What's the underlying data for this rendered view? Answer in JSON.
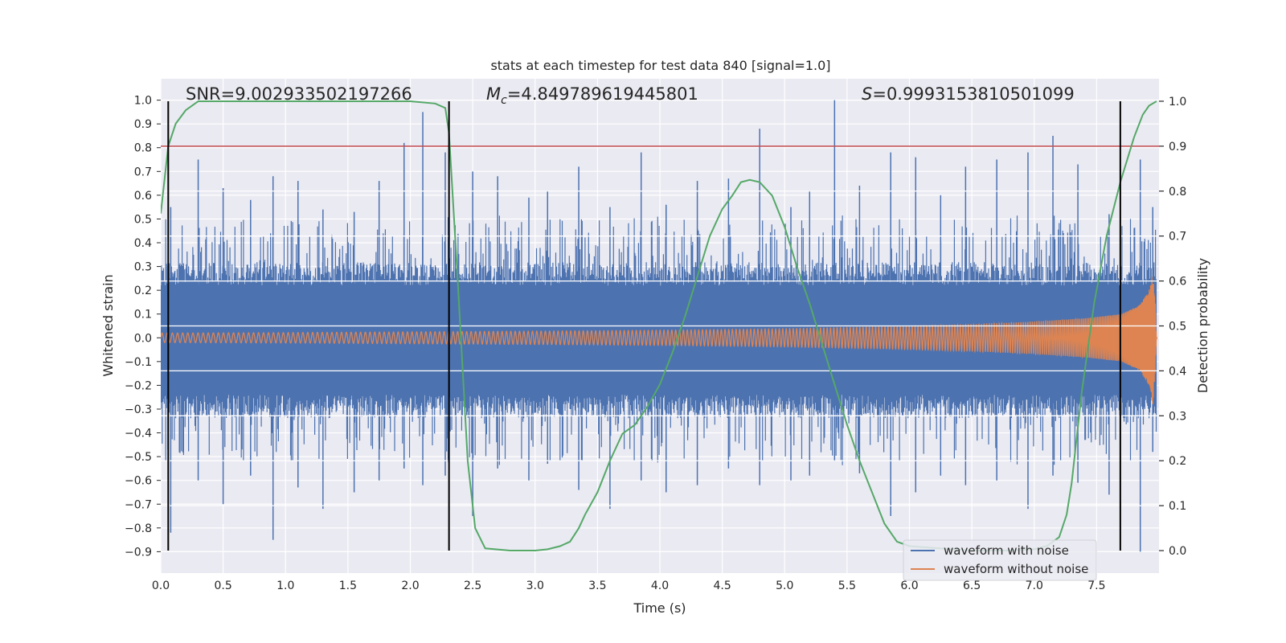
{
  "chart_data": {
    "type": "line",
    "title": "stats at each timestep for test data 840 [signal=1.0]",
    "xlabel": "Time (s)",
    "ylabel": "Whitened strain",
    "y2label": "Detection probability",
    "xlim": [
      0.0,
      8.0
    ],
    "ylim": [
      -0.99,
      1.09
    ],
    "y2lim": [
      -0.05,
      1.05
    ],
    "xticks": [
      "0.0",
      "0.5",
      "1.0",
      "1.5",
      "2.0",
      "2.5",
      "3.0",
      "3.5",
      "4.0",
      "4.5",
      "5.0",
      "5.5",
      "6.0",
      "6.5",
      "7.0",
      "7.5"
    ],
    "xtick_values": [
      0.0,
      0.5,
      1.0,
      1.5,
      2.0,
      2.5,
      3.0,
      3.5,
      4.0,
      4.5,
      5.0,
      5.5,
      6.0,
      6.5,
      7.0,
      7.5
    ],
    "yticks": [
      "1.0",
      "0.9",
      "0.8",
      "0.7",
      "0.6",
      "0.5",
      "0.4",
      "0.3",
      "0.2",
      "0.1",
      "0.0",
      "−0.1",
      "−0.2",
      "−0.3",
      "−0.4",
      "−0.5",
      "−0.6",
      "−0.7",
      "−0.8",
      "−0.9"
    ],
    "ytick_values": [
      1.0,
      0.9,
      0.8,
      0.7,
      0.6,
      0.5,
      0.4,
      0.3,
      0.2,
      0.1,
      0.0,
      -0.1,
      -0.2,
      -0.3,
      -0.4,
      -0.5,
      -0.6,
      -0.7,
      -0.8,
      -0.9
    ],
    "y2ticks": [
      "1.0",
      "0.9",
      "0.8",
      "0.7",
      "0.6",
      "0.5",
      "0.4",
      "0.3",
      "0.2",
      "0.1",
      "0.0"
    ],
    "y2tick_values": [
      1.0,
      0.9,
      0.8,
      0.7,
      0.6,
      0.5,
      0.4,
      0.3,
      0.2,
      0.1,
      0.0
    ],
    "annotations": {
      "snr": "SNR=9.002933502197266",
      "mc_symbol": "M",
      "mc_sub": "c",
      "mc_value": "=4.849789619445801",
      "s_symbol": "S",
      "s_value": "=0.9993153810501099"
    },
    "threshold": {
      "value": 0.9,
      "axis": "y2",
      "color": "#c44e52"
    },
    "vlines_x": [
      0.06,
      2.31,
      7.69
    ],
    "legend": {
      "placement": "lower-right",
      "entries": [
        "waveform with noise",
        "waveform without noise"
      ]
    },
    "series": [
      {
        "name": "waveform with noise",
        "color": "#4c72b0",
        "peaks": [
          [
            0.08,
            0.55,
            -0.82
          ],
          [
            0.3,
            0.75,
            -0.6
          ],
          [
            0.5,
            0.63,
            -0.7
          ],
          [
            0.72,
            0.58,
            -0.58
          ],
          [
            0.9,
            0.68,
            -0.85
          ],
          [
            1.1,
            0.66,
            -0.63
          ],
          [
            1.3,
            0.54,
            -0.72
          ],
          [
            1.55,
            0.53,
            -0.65
          ],
          [
            1.75,
            0.66,
            -0.6
          ],
          [
            1.95,
            0.82,
            -0.55
          ],
          [
            2.1,
            0.95,
            -0.62
          ],
          [
            2.28,
            0.78,
            -0.58
          ],
          [
            2.5,
            0.7,
            -0.75
          ],
          [
            2.7,
            0.68,
            -0.55
          ],
          [
            2.95,
            0.59,
            -0.6
          ],
          [
            3.1,
            0.62,
            -0.53
          ],
          [
            3.35,
            0.72,
            -0.64
          ],
          [
            3.6,
            0.55,
            -0.72
          ],
          [
            3.85,
            0.78,
            -0.6
          ],
          [
            4.05,
            0.56,
            -0.65
          ],
          [
            4.3,
            0.66,
            -0.62
          ],
          [
            4.55,
            0.67,
            -0.55
          ],
          [
            4.8,
            0.88,
            -0.62
          ],
          [
            5.05,
            0.55,
            -0.6
          ],
          [
            5.2,
            0.62,
            -0.58
          ],
          [
            5.4,
            1.0,
            -0.52
          ],
          [
            5.6,
            0.64,
            -0.57
          ],
          [
            5.85,
            0.78,
            -0.75
          ],
          [
            6.05,
            0.76,
            -0.65
          ],
          [
            6.25,
            0.6,
            -0.58
          ],
          [
            6.45,
            0.72,
            -0.62
          ],
          [
            6.7,
            0.75,
            -0.6
          ],
          [
            6.95,
            0.78,
            -0.72
          ],
          [
            7.15,
            0.85,
            -0.58
          ],
          [
            7.35,
            0.73,
            -0.61
          ],
          [
            7.6,
            0.52,
            -0.66
          ],
          [
            7.85,
            0.75,
            -0.9
          ],
          [
            7.95,
            0.55,
            -0.48
          ]
        ]
      },
      {
        "name": "waveform without noise",
        "color": "#dd8452",
        "envelope": [
          [
            0.0,
            0.02
          ],
          [
            1.0,
            0.022
          ],
          [
            2.0,
            0.025
          ],
          [
            3.0,
            0.028
          ],
          [
            4.0,
            0.032
          ],
          [
            5.0,
            0.038
          ],
          [
            6.0,
            0.048
          ],
          [
            6.5,
            0.056
          ],
          [
            7.0,
            0.068
          ],
          [
            7.4,
            0.082
          ],
          [
            7.7,
            0.1
          ],
          [
            7.85,
            0.14
          ],
          [
            7.92,
            0.2
          ],
          [
            7.95,
            0.28
          ],
          [
            7.97,
            0.15
          ],
          [
            7.98,
            0.0
          ]
        ],
        "cycles": 320
      },
      {
        "name": "Detection probability",
        "axis": "y2",
        "color": "#55a868",
        "x": [
          0.0,
          0.06,
          0.12,
          0.2,
          0.3,
          0.4,
          0.6,
          1.0,
          1.5,
          2.0,
          2.2,
          2.28,
          2.31,
          2.38,
          2.46,
          2.52,
          2.6,
          2.8,
          3.0,
          3.1,
          3.2,
          3.28,
          3.35,
          3.4,
          3.5,
          3.6,
          3.7,
          3.8,
          3.9,
          4.0,
          4.1,
          4.2,
          4.3,
          4.4,
          4.5,
          4.58,
          4.65,
          4.72,
          4.8,
          4.9,
          5.0,
          5.1,
          5.2,
          5.3,
          5.4,
          5.5,
          5.6,
          5.7,
          5.8,
          5.9,
          6.0,
          6.5,
          6.8,
          7.0,
          7.1,
          7.2,
          7.26,
          7.3,
          7.38,
          7.48,
          7.58,
          7.69,
          7.8,
          7.87,
          7.92,
          7.98
        ],
        "y": [
          0.75,
          0.9,
          0.95,
          0.98,
          1.0,
          1.0,
          1.0,
          1.0,
          1.0,
          1.0,
          0.995,
          0.985,
          0.93,
          0.6,
          0.2,
          0.05,
          0.005,
          0.0,
          0.0,
          0.003,
          0.01,
          0.02,
          0.05,
          0.08,
          0.13,
          0.2,
          0.26,
          0.28,
          0.32,
          0.37,
          0.44,
          0.52,
          0.61,
          0.7,
          0.76,
          0.79,
          0.82,
          0.825,
          0.82,
          0.79,
          0.72,
          0.63,
          0.55,
          0.46,
          0.37,
          0.28,
          0.2,
          0.13,
          0.06,
          0.02,
          0.01,
          0.0,
          0.0,
          0.003,
          0.01,
          0.03,
          0.08,
          0.15,
          0.35,
          0.55,
          0.7,
          0.82,
          0.92,
          0.97,
          0.99,
          1.0
        ]
      }
    ]
  }
}
